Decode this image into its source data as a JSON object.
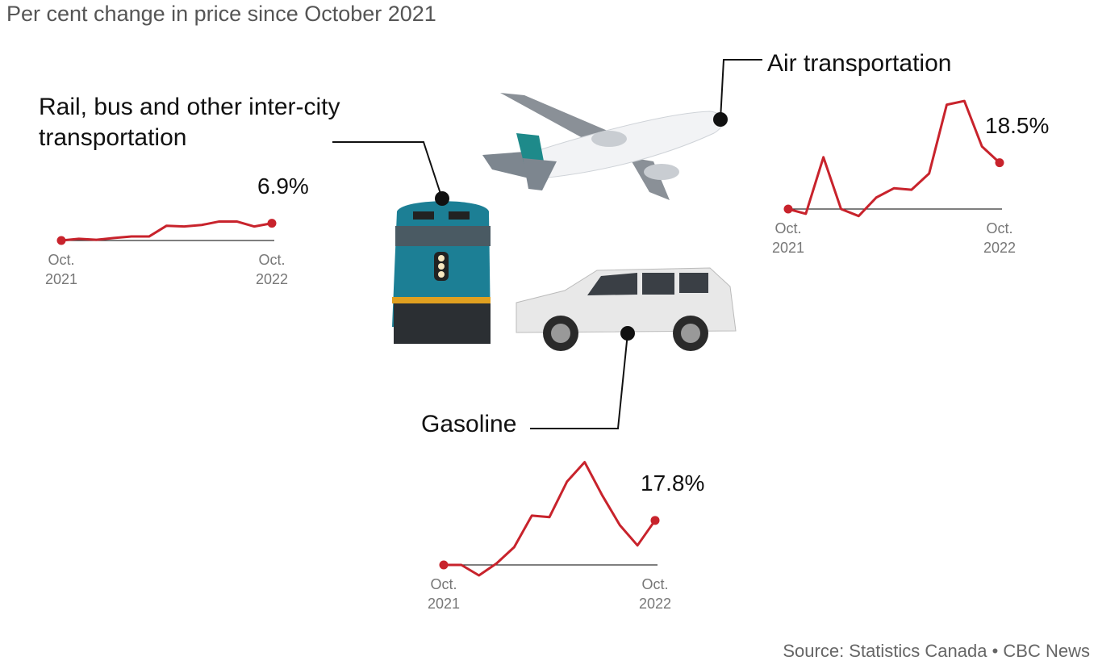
{
  "title": "Per cent change in price since October 2021",
  "source": "Source: Statistics Canada • CBC News",
  "chart_data": [
    {
      "type": "line",
      "title": "Rail, bus and other inter-city transportation",
      "categories": [
        "Oct. 2021",
        null,
        null,
        null,
        null,
        null,
        null,
        null,
        null,
        null,
        null,
        null,
        "Oct. 2022"
      ],
      "values": [
        0,
        0.7,
        0.3,
        1.0,
        1.6,
        1.6,
        5.9,
        5.6,
        6.2,
        7.6,
        7.6,
        5.6,
        6.9
      ],
      "value_labels": [
        null,
        null,
        null,
        null,
        null,
        null,
        null,
        null,
        null,
        null,
        null,
        null,
        "6.9%"
      ],
      "color": "#c8232c",
      "ylim": [
        -5,
        45
      ]
    },
    {
      "type": "line",
      "title": "Air transportation",
      "categories": [
        "Oct. 2021",
        null,
        null,
        null,
        null,
        null,
        null,
        null,
        null,
        null,
        null,
        null,
        "Oct. 2022"
      ],
      "values": [
        0,
        -1.9,
        20.7,
        0,
        -2.8,
        4.6,
        8.3,
        7.7,
        14.2,
        41.7,
        43.2,
        25.0,
        18.5
      ],
      "value_labels": [
        null,
        null,
        null,
        null,
        null,
        null,
        null,
        null,
        null,
        null,
        null,
        null,
        "18.5%"
      ],
      "color": "#c8232c",
      "ylim": [
        -5,
        45
      ]
    },
    {
      "type": "line",
      "title": "Gasoline",
      "categories": [
        "Oct. 2021",
        null,
        null,
        null,
        null,
        null,
        null,
        null,
        null,
        null,
        null,
        null,
        "Oct. 2022"
      ],
      "values": [
        0,
        0,
        -4.2,
        0.6,
        7.1,
        19.7,
        19.1,
        33.3,
        41.1,
        27.8,
        15.9,
        7.8,
        17.8
      ],
      "value_labels": [
        null,
        null,
        null,
        null,
        null,
        null,
        null,
        null,
        null,
        null,
        null,
        null,
        "17.8%"
      ],
      "color": "#c8232c",
      "ylim": [
        -5,
        45
      ]
    }
  ]
}
